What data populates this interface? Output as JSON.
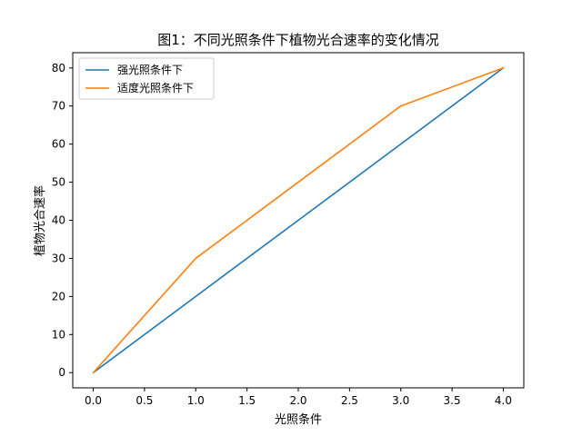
{
  "chart_data": {
    "type": "line",
    "title": "图1：不同光照条件下植物光合速率的变化情况",
    "xlabel": "光照条件",
    "ylabel": "植物光合速率",
    "xlim": [
      -0.2,
      4.2
    ],
    "ylim": [
      -4,
      84
    ],
    "xticks": [
      0.0,
      0.5,
      1.0,
      1.5,
      2.0,
      2.5,
      3.0,
      3.5,
      4.0
    ],
    "xtick_labels": [
      "0.0",
      "0.5",
      "1.0",
      "1.5",
      "2.0",
      "2.5",
      "3.0",
      "3.5",
      "4.0"
    ],
    "yticks": [
      0,
      10,
      20,
      30,
      40,
      50,
      60,
      70,
      80
    ],
    "ytick_labels": [
      "0",
      "10",
      "20",
      "30",
      "40",
      "50",
      "60",
      "70",
      "80"
    ],
    "grid": false,
    "legend": "top-left",
    "series": [
      {
        "name": "强光照条件下",
        "color": "#1f77b4",
        "x": [
          0,
          1,
          2,
          3,
          4
        ],
        "y": [
          0,
          20,
          40,
          60,
          80
        ]
      },
      {
        "name": "适度光照条件下",
        "color": "#ff7f0e",
        "x": [
          0,
          1,
          2,
          3,
          4
        ],
        "y": [
          0,
          30,
          50,
          70,
          80
        ]
      }
    ]
  }
}
